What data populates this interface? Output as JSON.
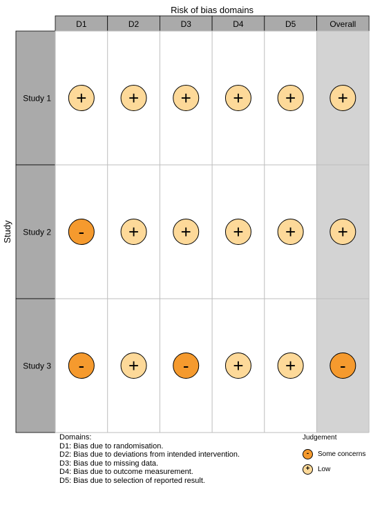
{
  "chart_data": {
    "type": "table",
    "title": "Risk of bias domains",
    "ylabel": "Study",
    "domains": [
      "D1",
      "D2",
      "D3",
      "D4",
      "D5",
      "Overall"
    ],
    "studies": [
      {
        "name": "Study 1",
        "judgements": [
          "Low",
          "Low",
          "Low",
          "Low",
          "Low",
          "Low"
        ]
      },
      {
        "name": "Study 2",
        "judgements": [
          "Some concerns",
          "Low",
          "Low",
          "Low",
          "Low",
          "Low"
        ]
      },
      {
        "name": "Study 3",
        "judgements": [
          "Some concerns",
          "Low",
          "Some concerns",
          "Low",
          "Low",
          "Some concerns"
        ]
      }
    ],
    "symbols": {
      "Low": "+",
      "Some concerns": "-"
    },
    "colors": {
      "Low": "#fdd999",
      "Some concerns": "#f59a2e",
      "header": "#aaaaaa",
      "overall_bg": "#d3d3d3",
      "study_label_bg": "#aaaaaa"
    },
    "legend": {
      "domains_title": "Domains:",
      "domain_notes": [
        "D1: Bias due to randomisation.",
        "D2: Bias due to deviations from intended intervention.",
        "D3: Bias due to missing data.",
        "D4: Bias due to outcome measurement.",
        "D5: Bias due to selection of reported result."
      ],
      "judgement_title": "Judgement",
      "judgement_items": [
        {
          "label": "Some concerns",
          "symbol": "-",
          "key": "Some concerns"
        },
        {
          "label": "Low",
          "symbol": "+",
          "key": "Low"
        }
      ]
    }
  }
}
